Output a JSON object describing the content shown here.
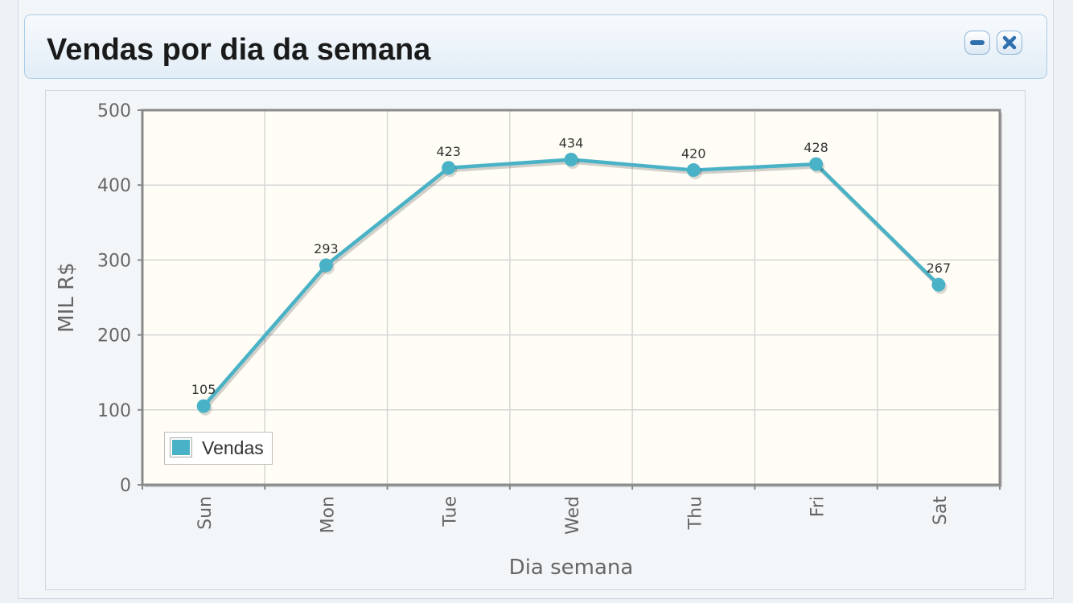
{
  "panel": {
    "title": "Vendas por dia da semana",
    "minimize_icon": "minus-icon",
    "close_icon": "close-x-icon"
  },
  "chart_data": {
    "type": "line",
    "title": "",
    "xlabel": "Dia semana",
    "ylabel": "MIL R$",
    "categories": [
      "Sun",
      "Mon",
      "Tue",
      "Wed",
      "Thu",
      "Fri",
      "Sat"
    ],
    "ylim": [
      0,
      500
    ],
    "yticks": [
      0,
      100,
      200,
      300,
      400,
      500
    ],
    "grid": true,
    "legend_position": "bottom-left",
    "series": [
      {
        "name": "Vendas",
        "values": [
          105,
          293,
          423,
          434,
          420,
          428,
          267
        ],
        "color": "#4ab2c6"
      }
    ]
  },
  "colors": {
    "accent": "#4ab2c6",
    "plot_bg": "#fffdf6",
    "header_border": "#a9cbe6"
  }
}
